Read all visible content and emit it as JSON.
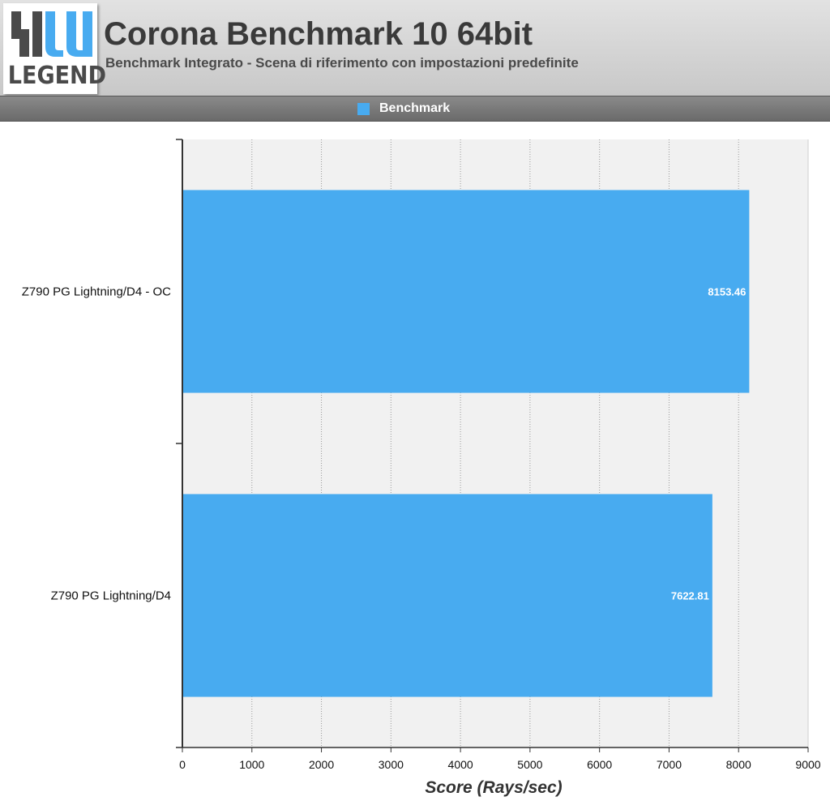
{
  "header": {
    "logo_text": "LEGEND",
    "title": "Corona Benchmark 10 64bit",
    "subtitle": "Benchmark Integrato - Scena di riferimento con impostazioni predefinite"
  },
  "legend": {
    "label": "Benchmark",
    "color": "#48abf0"
  },
  "chart_data": {
    "type": "bar",
    "orientation": "horizontal",
    "categories": [
      "Z790 PG Lightning/D4 - OC",
      "Z790 PG Lightning/D4"
    ],
    "series": [
      {
        "name": "Benchmark",
        "values": [
          8153.46,
          7622.81
        ],
        "color": "#48abf0"
      }
    ],
    "data_labels": [
      "8153.46",
      "7622.81"
    ],
    "xlabel": "Score (Rays/sec)",
    "ylabel": "",
    "xlim": [
      0,
      9000
    ],
    "xticks": [
      0,
      1000,
      2000,
      3000,
      4000,
      5000,
      6000,
      7000,
      8000,
      9000
    ],
    "grid": "vertical dotted",
    "legend_position": "top-center"
  }
}
